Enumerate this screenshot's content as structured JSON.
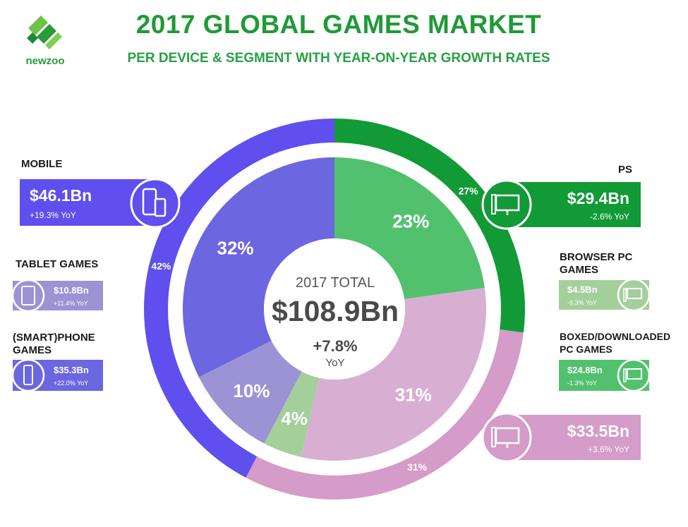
{
  "brand": {
    "name": "newzoo"
  },
  "title": "2017 GLOBAL GAMES MARKET",
  "subtitle": "PER DEVICE & SEGMENT WITH YEAR-ON-YEAR GROWTH RATES",
  "center": {
    "label": "2017 TOTAL",
    "total": "$108.9Bn",
    "growth": "+7.8%",
    "yoy": "YoY"
  },
  "colors": {
    "mobile": "#5e4fee",
    "tablet": "#9b93d4",
    "smartphone": "#6c66e1",
    "pc": "#129a37",
    "browser_pc": "#a3cf9b",
    "boxed_pc": "#52c16e",
    "console": "#d59bc9",
    "console_inner": "#d8afd2",
    "brand": "#1f9a37"
  },
  "callouts": {
    "mobile": {
      "label": "MOBILE",
      "value": "$46.1Bn",
      "yoy": "+19.3% YoY"
    },
    "tablet": {
      "label": "TABLET GAMES",
      "value": "$10.8Bn",
      "yoy": "+11.4% YoY"
    },
    "smartphone": {
      "label": "(SMART)PHONE GAMES",
      "value": "$35.3Bn",
      "yoy": "+22.0% YoY"
    },
    "pc": {
      "label": "PS",
      "value": "$29.4Bn",
      "yoy": "-2.6% YoY"
    },
    "browser_pc": {
      "label": "BROWSER PC GAMES",
      "value": "$4.5Bn",
      "yoy": "-9.3% YoY"
    },
    "boxed_pc": {
      "label": "BOXED/DOWNLOADED PC GAMES",
      "value": "$24.8Bn",
      "yoy": "-1.3% YoY"
    },
    "console": {
      "value": "$33.5Bn",
      "yoy": "+3.6% YoY"
    }
  },
  "chart_data": {
    "type": "pie",
    "title": "2017 GLOBAL GAMES MARKET",
    "subtitle": "PER DEVICE & SEGMENT WITH YEAR-ON-YEAR GROWTH RATES",
    "outer_ring": [
      {
        "name": "PS",
        "value": 29.4,
        "share_label": "27%",
        "color": "#129a37"
      },
      {
        "name": "",
        "value": 33.5,
        "share_label": "31%",
        "color": "#d59bc9"
      },
      {
        "name": "MOBILE",
        "value": 46.1,
        "share_label": "42%",
        "color": "#5e4fee"
      }
    ],
    "inner_ring": [
      {
        "name": "BOXED/DOWNLOADED PC GAMES",
        "value": 24.8,
        "share_label": "23%",
        "color": "#52c16e"
      },
      {
        "name": "",
        "value": 33.5,
        "share_label": "31%",
        "color": "#d8afd2"
      },
      {
        "name": "BROWSER PC GAMES",
        "value": 4.5,
        "share_label": "4%",
        "color": "#a3cf9b"
      },
      {
        "name": "TABLET GAMES",
        "value": 10.8,
        "share_label": "10%",
        "color": "#9b93d4"
      },
      {
        "name": "(SMART)PHONE GAMES",
        "value": 35.3,
        "share_label": "32%",
        "color": "#6c66e1"
      }
    ],
    "total": "$108.9Bn"
  }
}
